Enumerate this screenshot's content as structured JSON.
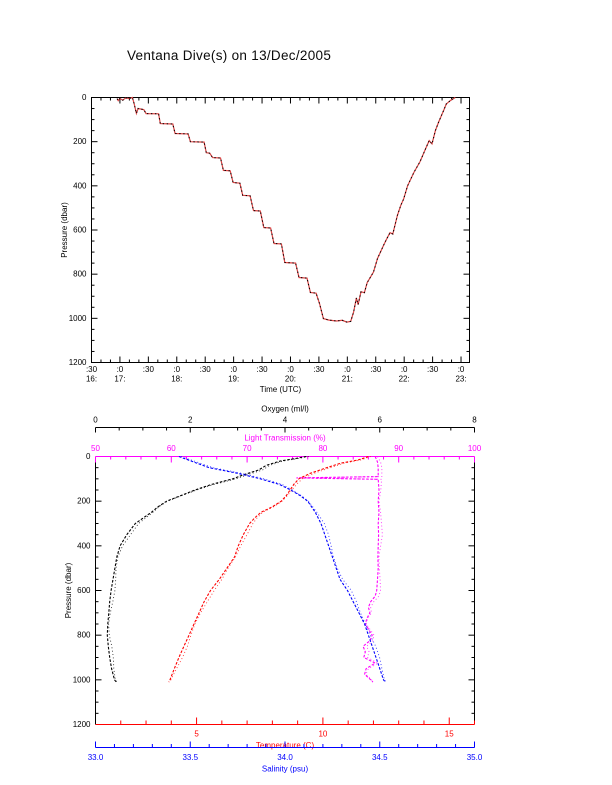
{
  "page_title": "Ventana Dive(s) on 13/Dec/2005",
  "colors": {
    "frame": "#000000",
    "track": "#dd4444",
    "track_dots": "#000000",
    "oxygen": "#000000",
    "light": "#ff00ff",
    "temperature": "#ff0000",
    "salinity": "#0000ff"
  },
  "top_plot": {
    "xlabel": "Time (UTC)",
    "ylabel": "Pressure (dbar)",
    "y_tick_labels": [
      "0",
      "200",
      "400",
      "600",
      "800",
      "1000",
      "1200"
    ],
    "x_ticks": [
      {
        "minute": ":30",
        "hour": "16:"
      },
      {
        "minute": ":0",
        "hour": "17:"
      },
      {
        "minute": ":30"
      },
      {
        "minute": ":0",
        "hour": "18:"
      },
      {
        "minute": ":30"
      },
      {
        "minute": ":0",
        "hour": "19:"
      },
      {
        "minute": ":30"
      },
      {
        "minute": ":0",
        "hour": "20:"
      },
      {
        "minute": ":30"
      },
      {
        "minute": ":0",
        "hour": "21:"
      },
      {
        "minute": ":30"
      },
      {
        "minute": ":0",
        "hour": "22:"
      },
      {
        "minute": ":30"
      },
      {
        "minute": ":0",
        "hour": "23:"
      }
    ]
  },
  "bottom_plot": {
    "ylabel": "Pressure (dbar)",
    "y_tick_labels": [
      "0",
      "200",
      "400",
      "600",
      "800",
      "1000",
      "1200"
    ],
    "axes": {
      "oxygen": {
        "label": "Oxygen (ml/l)",
        "color": "#000000",
        "tick_labels": [
          "0",
          "2",
          "4",
          "6",
          "8"
        ],
        "tick_values": [
          0,
          2,
          4,
          6,
          8
        ],
        "range": [
          0,
          8
        ]
      },
      "light": {
        "label": "Light Transmission (%)",
        "color": "#ff00ff",
        "tick_labels": [
          "50",
          "60",
          "70",
          "80",
          "90",
          "100"
        ],
        "tick_values": [
          50,
          60,
          70,
          80,
          90,
          100
        ],
        "range": [
          50,
          100
        ]
      },
      "temperature": {
        "label": "Temperature (C)",
        "color": "#ff0000",
        "tick_labels": [
          "5",
          "10",
          "15"
        ],
        "tick_values": [
          5,
          10,
          15
        ],
        "range": [
          1,
          16
        ]
      },
      "salinity": {
        "label": "Salinity (psu)",
        "color": "#0000ff",
        "tick_labels": [
          "33.0",
          "33.5",
          "34.0",
          "34.5",
          "35.0"
        ],
        "tick_values": [
          33,
          33.5,
          34,
          34.5,
          35
        ],
        "range": [
          33,
          35
        ]
      }
    }
  },
  "chart_data": [
    {
      "type": "line",
      "title": "Ventana Dive(s) on 13/Dec/2005",
      "xlabel": "Time (UTC)",
      "ylabel": "Pressure (dbar)",
      "x_unit": "decimal hours UTC",
      "xlim": [
        16.5,
        23.13
      ],
      "ylim": [
        1200,
        0
      ],
      "x_tick_interval_minutes": 30,
      "grid": false,
      "series": [
        {
          "name": "dive-depth-track",
          "color": "#dd4444",
          "points_time_pressure": [
            [
              16.95,
              5
            ],
            [
              16.97,
              14
            ],
            [
              17.0,
              4
            ],
            [
              17.05,
              12
            ],
            [
              17.1,
              2
            ],
            [
              17.16,
              5
            ],
            [
              17.22,
              0
            ],
            [
              17.25,
              27
            ],
            [
              17.29,
              72
            ],
            [
              17.32,
              50
            ],
            [
              17.42,
              55
            ],
            [
              17.46,
              73
            ],
            [
              17.68,
              74
            ],
            [
              17.71,
              118
            ],
            [
              17.93,
              120
            ],
            [
              17.97,
              163
            ],
            [
              18.2,
              165
            ],
            [
              18.24,
              200
            ],
            [
              18.48,
              202
            ],
            [
              18.52,
              250
            ],
            [
              18.58,
              252
            ],
            [
              18.63,
              272
            ],
            [
              18.77,
              274
            ],
            [
              18.82,
              330
            ],
            [
              18.94,
              332
            ],
            [
              18.99,
              385
            ],
            [
              19.11,
              388
            ],
            [
              19.16,
              443
            ],
            [
              19.29,
              445
            ],
            [
              19.35,
              512
            ],
            [
              19.47,
              514
            ],
            [
              19.53,
              589
            ],
            [
              19.65,
              591
            ],
            [
              19.71,
              661
            ],
            [
              19.84,
              663
            ],
            [
              19.9,
              747
            ],
            [
              20.09,
              750
            ],
            [
              20.15,
              815
            ],
            [
              20.29,
              818
            ],
            [
              20.35,
              883
            ],
            [
              20.45,
              886
            ],
            [
              20.51,
              933
            ],
            [
              20.58,
              1001
            ],
            [
              20.68,
              1008
            ],
            [
              20.81,
              1012
            ],
            [
              20.91,
              1009
            ],
            [
              20.99,
              1017
            ],
            [
              21.06,
              1014
            ],
            [
              21.11,
              972
            ],
            [
              21.16,
              908
            ],
            [
              21.19,
              938
            ],
            [
              21.24,
              880
            ],
            [
              21.3,
              884
            ],
            [
              21.35,
              838
            ],
            [
              21.46,
              790
            ],
            [
              21.53,
              729
            ],
            [
              21.64,
              668
            ],
            [
              21.69,
              641
            ],
            [
              21.75,
              612
            ],
            [
              21.8,
              618
            ],
            [
              21.88,
              534
            ],
            [
              21.94,
              488
            ],
            [
              21.99,
              460
            ],
            [
              22.06,
              400
            ],
            [
              22.17,
              340
            ],
            [
              22.28,
              290
            ],
            [
              22.38,
              230
            ],
            [
              22.44,
              195
            ],
            [
              22.49,
              210
            ],
            [
              22.55,
              150
            ],
            [
              22.6,
              115
            ],
            [
              22.65,
              85
            ],
            [
              22.7,
              55
            ],
            [
              22.74,
              30
            ],
            [
              22.82,
              12
            ],
            [
              22.9,
              0
            ]
          ]
        }
      ]
    },
    {
      "type": "line",
      "ylabel": "Pressure (dbar)",
      "ylim": [
        1200,
        0
      ],
      "pressure_range": [
        0,
        1200
      ],
      "grid": false,
      "series": [
        {
          "name": "Oxygen (ml/l)",
          "color": "#000000",
          "xlim": [
            0,
            8
          ],
          "points_pressure_value": [
            [
              0,
              4.45
            ],
            [
              10,
              4.2
            ],
            [
              20,
              3.9
            ],
            [
              40,
              3.6
            ],
            [
              60,
              3.45
            ],
            [
              80,
              3.15
            ],
            [
              100,
              2.9
            ],
            [
              125,
              2.45
            ],
            [
              150,
              2.1
            ],
            [
              175,
              1.8
            ],
            [
              200,
              1.5
            ],
            [
              225,
              1.32
            ],
            [
              250,
              1.18
            ],
            [
              300,
              0.84
            ],
            [
              350,
              0.66
            ],
            [
              400,
              0.52
            ],
            [
              450,
              0.45
            ],
            [
              500,
              0.41
            ],
            [
              550,
              0.37
            ],
            [
              600,
              0.33
            ],
            [
              650,
              0.3
            ],
            [
              700,
              0.28
            ],
            [
              750,
              0.26
            ],
            [
              800,
              0.25
            ],
            [
              850,
              0.27
            ],
            [
              900,
              0.3
            ],
            [
              950,
              0.34
            ],
            [
              1000,
              0.4
            ],
            [
              1010,
              0.44
            ]
          ]
        },
        {
          "name": "Light Transmission (%)",
          "color": "#ff00ff",
          "xlim": [
            50,
            100
          ],
          "points_pressure_value": [
            [
              0,
              86.9
            ],
            [
              25,
              87.2
            ],
            [
              50,
              87.3
            ],
            [
              90,
              87.3
            ],
            [
              96,
              76.5
            ],
            [
              102,
              87.3
            ],
            [
              150,
              87.4
            ],
            [
              200,
              87.3
            ],
            [
              250,
              87.4
            ],
            [
              300,
              87.3
            ],
            [
              350,
              87.35
            ],
            [
              400,
              87.3
            ],
            [
              450,
              87.25
            ],
            [
              500,
              87.3
            ],
            [
              550,
              87.2
            ],
            [
              600,
              87.1
            ],
            [
              625,
              86.9
            ],
            [
              650,
              86.3
            ],
            [
              675,
              86.0
            ],
            [
              700,
              86.2
            ],
            [
              725,
              85.8
            ],
            [
              750,
              85.6
            ],
            [
              800,
              86.5
            ],
            [
              825,
              86.2
            ],
            [
              850,
              85.3
            ],
            [
              875,
              85.6
            ],
            [
              900,
              85.4
            ],
            [
              925,
              86.9
            ],
            [
              950,
              85.7
            ],
            [
              975,
              85.5
            ],
            [
              1000,
              86.3
            ],
            [
              1010,
              86.6
            ]
          ]
        },
        {
          "name": "Temperature (C)",
          "color": "#ff0000",
          "xlim": [
            1,
            16
          ],
          "points_pressure_value": [
            [
              0,
              11.8
            ],
            [
              15,
              11.4
            ],
            [
              30,
              10.7
            ],
            [
              50,
              10.15
            ],
            [
              75,
              9.5
            ],
            [
              100,
              9.05
            ],
            [
              125,
              8.85
            ],
            [
              150,
              8.7
            ],
            [
              175,
              8.55
            ],
            [
              200,
              8.35
            ],
            [
              225,
              8.0
            ],
            [
              250,
              7.55
            ],
            [
              275,
              7.3
            ],
            [
              300,
              7.1
            ],
            [
              350,
              6.85
            ],
            [
              400,
              6.65
            ],
            [
              450,
              6.5
            ],
            [
              500,
              6.2
            ],
            [
              550,
              5.9
            ],
            [
              600,
              5.55
            ],
            [
              650,
              5.3
            ],
            [
              700,
              5.1
            ],
            [
              750,
              4.9
            ],
            [
              800,
              4.7
            ],
            [
              850,
              4.5
            ],
            [
              900,
              4.3
            ],
            [
              950,
              4.12
            ],
            [
              1000,
              3.95
            ],
            [
              1010,
              3.9
            ]
          ]
        },
        {
          "name": "Salinity (psu)",
          "color": "#0000ff",
          "xlim": [
            33,
            35
          ],
          "points_pressure_value": [
            [
              0,
              33.44
            ],
            [
              25,
              33.52
            ],
            [
              50,
              33.6
            ],
            [
              75,
              33.75
            ],
            [
              100,
              33.87
            ],
            [
              125,
              33.97
            ],
            [
              150,
              34.03
            ],
            [
              175,
              34.08
            ],
            [
              200,
              34.12
            ],
            [
              250,
              34.16
            ],
            [
              300,
              34.19
            ],
            [
              350,
              34.21
            ],
            [
              400,
              34.23
            ],
            [
              450,
              34.25
            ],
            [
              500,
              34.27
            ],
            [
              550,
              34.29
            ],
            [
              600,
              34.33
            ],
            [
              650,
              34.36
            ],
            [
              700,
              34.39
            ],
            [
              750,
              34.42
            ],
            [
              800,
              34.44
            ],
            [
              850,
              34.46
            ],
            [
              900,
              34.48
            ],
            [
              950,
              34.5
            ],
            [
              1000,
              34.52
            ],
            [
              1010,
              34.53
            ]
          ]
        }
      ]
    }
  ]
}
